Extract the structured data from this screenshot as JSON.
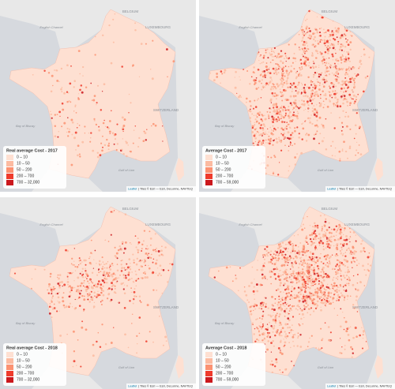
{
  "panels": [
    {
      "legend": {
        "title": "Real average Cost - 2017",
        "items": [
          "0 – 10",
          "10 – 50",
          "50 – 200",
          "200 – 700",
          "700 – 32,000"
        ]
      }
    },
    {
      "legend": {
        "title": "Average Cost - 2017",
        "items": [
          "0 – 10",
          "10 – 50",
          "50 – 200",
          "200 – 700",
          "700 – 59,000"
        ]
      }
    },
    {
      "legend": {
        "title": "Real average Cost - 2018",
        "items": [
          "0 – 10",
          "10 – 50",
          "50 – 200",
          "200 – 700",
          "700 – 32,000"
        ]
      }
    },
    {
      "legend": {
        "title": "Average Cost - 2018",
        "items": [
          "0 – 10",
          "10 – 50",
          "50 – 200",
          "200 – 700",
          "700 – 59,000"
        ]
      }
    }
  ],
  "legend_colors": [
    "#fee0d2",
    "#fcbba1",
    "#fc9272",
    "#ef3b2c",
    "#cb181d"
  ],
  "map_labels": [
    "BELGIUM",
    "LUXEMBOURG",
    "SWITZERLAND",
    "English Channel",
    "Bay of Biscay",
    "Gulf of Lion"
  ],
  "attribution": {
    "link": "Leaflet",
    "text": "| Tiles © Esri — Esri, DeLorme, NAVTEQ"
  }
}
